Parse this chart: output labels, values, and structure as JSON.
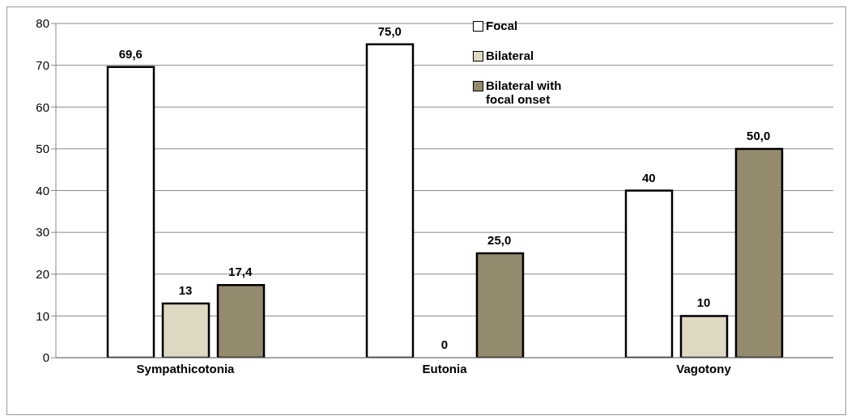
{
  "chart_data": {
    "type": "bar",
    "categories": [
      "Sympathicotonia",
      "Eutonia",
      "Vagotony"
    ],
    "series": [
      {
        "name": "Focal",
        "color": "#ffffff",
        "values": [
          69.6,
          75.0,
          40
        ],
        "value_labels": [
          "69,6",
          "75,0",
          "40"
        ]
      },
      {
        "name": "Bilateral",
        "color": "#ddd9c3",
        "values": [
          13,
          0,
          10
        ],
        "value_labels": [
          "13",
          "0",
          "10"
        ]
      },
      {
        "name": "Bilateral with focal onset",
        "color": "#948a6e",
        "values": [
          17.4,
          25.0,
          50.0
        ],
        "value_labels": [
          "17,4",
          "25,0",
          "50,0"
        ]
      }
    ],
    "ylim": [
      0,
      80
    ],
    "yticks": [
      0,
      10,
      20,
      30,
      40,
      50,
      60,
      70,
      80
    ],
    "grid": "y",
    "legend": "top right"
  }
}
